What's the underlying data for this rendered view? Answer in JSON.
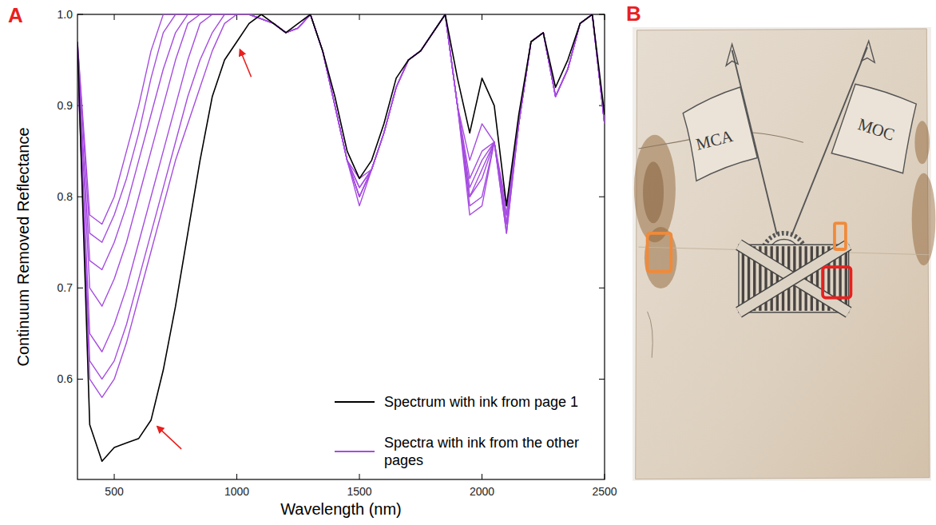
{
  "chart_data": {
    "type": "line",
    "x_label": "Wavelength (nm)",
    "y_label": "Continuum Removed Reflectance",
    "x": [
      350,
      400,
      450,
      500,
      550,
      600,
      650,
      700,
      750,
      800,
      850,
      900,
      950,
      1000,
      1050,
      1100,
      1150,
      1200,
      1250,
      1300,
      1350,
      1400,
      1450,
      1500,
      1550,
      1600,
      1650,
      1700,
      1750,
      1800,
      1850,
      1900,
      1950,
      2000,
      2050,
      2100,
      2150,
      2200,
      2250,
      2300,
      2350,
      2400,
      2450,
      2500
    ],
    "series": [
      {
        "name": "Spectra with ink from the other pages",
        "color": "#a64ce0",
        "values": [
          0.97,
          0.78,
          0.77,
          0.8,
          0.85,
          0.9,
          0.96,
          1.0,
          1.0,
          1.0,
          1.0,
          1.0,
          1.0,
          1.0,
          1.0,
          0.995,
          0.99,
          0.98,
          0.985,
          1.0,
          0.96,
          0.9,
          0.84,
          0.82,
          0.83,
          0.87,
          0.92,
          0.95,
          0.96,
          0.98,
          1.0,
          0.9,
          0.84,
          0.88,
          0.86,
          0.79,
          0.88,
          0.97,
          0.98,
          0.91,
          0.94,
          0.99,
          1.0,
          0.88
        ]
      },
      {
        "color": "#a64ce0",
        "values": [
          0.97,
          0.76,
          0.75,
          0.78,
          0.82,
          0.87,
          0.93,
          0.98,
          1.0,
          1.0,
          1.0,
          1.0,
          1.0,
          1.0,
          1.0,
          0.995,
          0.99,
          0.98,
          0.985,
          1.0,
          0.96,
          0.9,
          0.84,
          0.81,
          0.83,
          0.87,
          0.92,
          0.95,
          0.96,
          0.98,
          1.0,
          0.9,
          0.82,
          0.85,
          0.86,
          0.78,
          0.88,
          0.97,
          0.98,
          0.91,
          0.94,
          0.99,
          1.0,
          0.88
        ]
      },
      {
        "color": "#a64ce0",
        "values": [
          0.96,
          0.73,
          0.72,
          0.75,
          0.79,
          0.84,
          0.89,
          0.94,
          0.98,
          1.0,
          1.0,
          1.0,
          1.0,
          1.0,
          1.0,
          0.995,
          0.99,
          0.98,
          0.985,
          1.0,
          0.96,
          0.9,
          0.84,
          0.8,
          0.83,
          0.87,
          0.92,
          0.95,
          0.96,
          0.98,
          1.0,
          0.9,
          0.8,
          0.82,
          0.86,
          0.77,
          0.88,
          0.97,
          0.98,
          0.91,
          0.94,
          0.99,
          1.0,
          0.88
        ]
      },
      {
        "color": "#a64ce0",
        "values": [
          0.96,
          0.7,
          0.68,
          0.71,
          0.75,
          0.8,
          0.85,
          0.9,
          0.95,
          0.99,
          1.0,
          1.0,
          1.0,
          1.0,
          1.0,
          0.995,
          0.99,
          0.98,
          0.985,
          1.0,
          0.96,
          0.9,
          0.84,
          0.81,
          0.83,
          0.87,
          0.92,
          0.95,
          0.96,
          0.98,
          1.0,
          0.9,
          0.79,
          0.8,
          0.86,
          0.76,
          0.88,
          0.97,
          0.98,
          0.91,
          0.94,
          0.99,
          1.0,
          0.88
        ]
      },
      {
        "color": "#a64ce0",
        "values": [
          0.96,
          0.65,
          0.63,
          0.66,
          0.7,
          0.75,
          0.8,
          0.85,
          0.9,
          0.95,
          0.99,
          1.0,
          1.0,
          1.0,
          1.0,
          0.995,
          0.99,
          0.98,
          0.985,
          1.0,
          0.96,
          0.9,
          0.84,
          0.8,
          0.83,
          0.87,
          0.92,
          0.95,
          0.96,
          0.98,
          1.0,
          0.9,
          0.78,
          0.79,
          0.86,
          0.76,
          0.88,
          0.97,
          0.98,
          0.91,
          0.94,
          0.99,
          1.0,
          0.88
        ]
      },
      {
        "color": "#a64ce0",
        "values": [
          0.95,
          0.62,
          0.6,
          0.62,
          0.66,
          0.71,
          0.76,
          0.81,
          0.86,
          0.91,
          0.95,
          0.98,
          1.0,
          1.0,
          1.0,
          0.995,
          0.99,
          0.98,
          0.985,
          1.0,
          0.96,
          0.9,
          0.84,
          0.79,
          0.83,
          0.87,
          0.92,
          0.95,
          0.96,
          0.98,
          1.0,
          0.9,
          0.81,
          0.84,
          0.86,
          0.77,
          0.88,
          0.97,
          0.98,
          0.91,
          0.94,
          0.99,
          1.0,
          0.88
        ]
      },
      {
        "color": "#a64ce0",
        "values": [
          0.95,
          0.6,
          0.58,
          0.6,
          0.64,
          0.69,
          0.74,
          0.79,
          0.84,
          0.88,
          0.92,
          0.96,
          0.99,
          1.0,
          1.0,
          0.995,
          0.99,
          0.98,
          0.985,
          1.0,
          0.96,
          0.9,
          0.84,
          0.8,
          0.83,
          0.87,
          0.92,
          0.95,
          0.96,
          0.98,
          1.0,
          0.9,
          0.8,
          0.83,
          0.86,
          0.78,
          0.88,
          0.97,
          0.98,
          0.91,
          0.94,
          0.99,
          1.0,
          0.88
        ]
      },
      {
        "name": "Spectrum with ink from page 1",
        "color": "#000000",
        "values": [
          0.97,
          0.55,
          0.51,
          0.525,
          0.53,
          0.535,
          0.555,
          0.61,
          0.68,
          0.76,
          0.84,
          0.91,
          0.95,
          0.97,
          0.99,
          1.0,
          0.99,
          0.98,
          0.99,
          1.0,
          0.96,
          0.91,
          0.85,
          0.82,
          0.84,
          0.88,
          0.93,
          0.95,
          0.96,
          0.98,
          1.0,
          0.93,
          0.87,
          0.93,
          0.9,
          0.79,
          0.89,
          0.97,
          0.98,
          0.92,
          0.95,
          0.99,
          1.0,
          0.89
        ]
      }
    ],
    "xlim": [
      350,
      2500
    ],
    "xticks": [
      500,
      1000,
      1500,
      2000,
      2500
    ],
    "ylim": [
      0.49,
      1.0
    ],
    "yticks": [
      0.6,
      0.7,
      0.8,
      0.9,
      {
        "value": 1.0,
        "label": "1.0"
      }
    ],
    "grid": false,
    "legend": "lower right"
  },
  "panel_labels": [
    "A",
    "B"
  ],
  "photo": {
    "flag_texts": [
      "MCA",
      "MOC"
    ]
  }
}
